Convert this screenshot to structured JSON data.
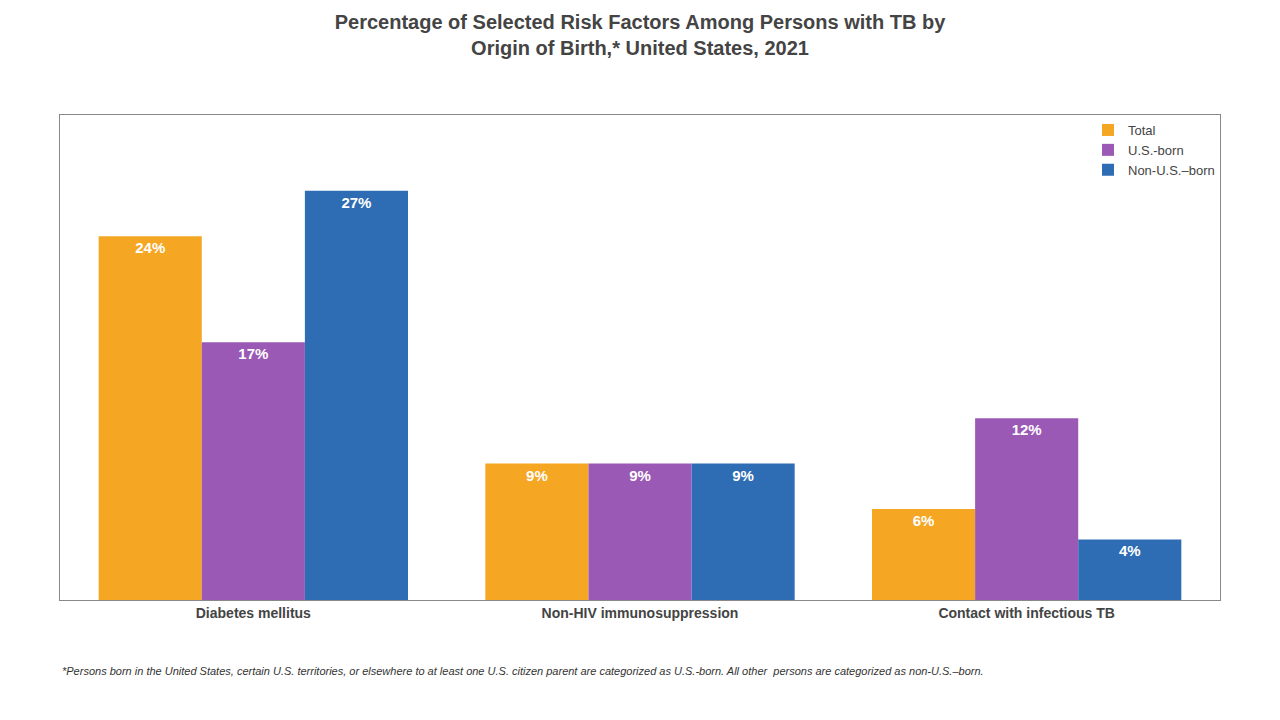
{
  "chart_data": {
    "type": "bar",
    "title": "Percentage of Selected Risk Factors Among Persons with TB by\nOrigin of Birth,* United States, 2021",
    "categories": [
      "Diabetes mellitus",
      "Non-HIV immunosuppression",
      "Contact with infectious TB"
    ],
    "series": [
      {
        "name": "Total",
        "color": "#F5A623",
        "values": [
          24,
          9,
          6
        ],
        "value_labels": [
          "24%",
          "9%",
          "6%"
        ]
      },
      {
        "name": "U.S.-born",
        "color": "#9B59B6",
        "values": [
          17,
          9,
          12
        ],
        "value_labels": [
          "17%",
          "9%",
          "12%"
        ]
      },
      {
        "name": "Non-U.S.–born",
        "color": "#2E6DB4",
        "values": [
          27,
          9,
          4
        ],
        "value_labels": [
          "27%",
          "9%",
          "4%"
        ]
      }
    ],
    "ylim": [
      0,
      32
    ],
    "tick_labels": "x",
    "grid": false,
    "legend": "upper right",
    "data_labels": true,
    "annotations": [
      "*Persons born in the United States, certain U.S. territories, or elsewhere to at least one U.S. citizen parent are categorized as U.S.-born. All other  persons are categorized as non-U.S.–born."
    ]
  }
}
